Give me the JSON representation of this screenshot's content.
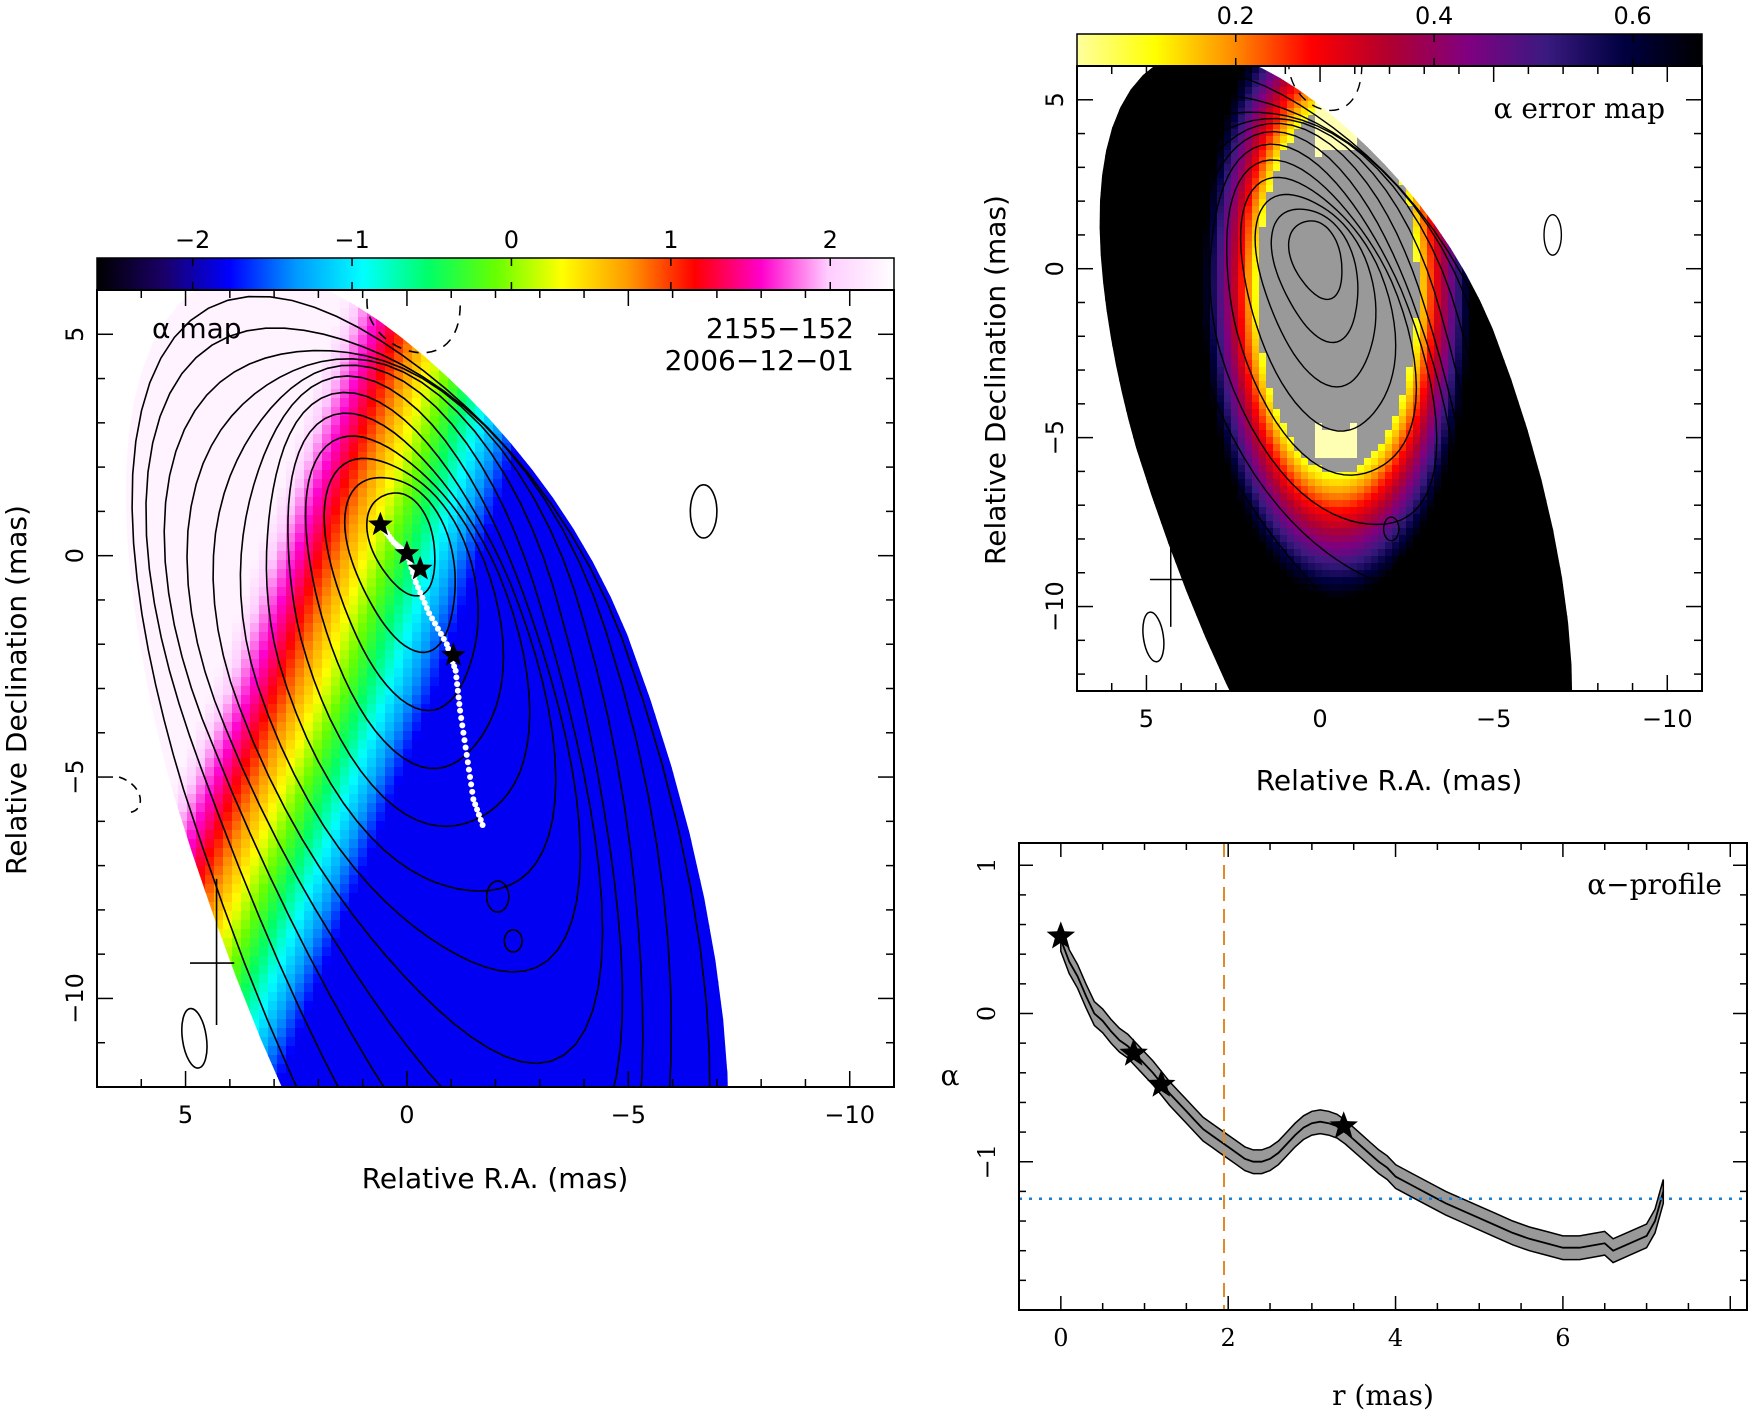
{
  "colors": {
    "alpha_map_scale": [
      "#000000",
      "#1a0066",
      "#0000ff",
      "#0099ff",
      "#00ffff",
      "#00ff66",
      "#66ff00",
      "#ffff00",
      "#ff9900",
      "#ff0000",
      "#ff00cc",
      "#ffccff",
      "#ffffff"
    ],
    "error_map_scale": [
      "#ffffa0",
      "#ffff00",
      "#ff8c00",
      "#ff0000",
      "#b00030",
      "#800080",
      "#3a1a80",
      "#000040",
      "#000000"
    ],
    "contour": "#000000",
    "ridge": "#ffffff",
    "profile_band": "#999999",
    "dashed_orange": "#e08a2e",
    "dotted_blue": "#1a7fd6"
  },
  "chart_data": [
    {
      "type": "heatmap",
      "title": "α map",
      "source": "2155−152",
      "epoch": "2006−12−01",
      "xlabel": "Relative R.A. (mas)",
      "ylabel": "Relative Declination (mas)",
      "xlim": [
        7,
        -11
      ],
      "ylim": [
        -12,
        6
      ],
      "xticks": [
        5,
        0,
        -5,
        -10
      ],
      "xtick_labels": [
        "5",
        "0",
        "−5",
        "−10"
      ],
      "yticks": [
        5,
        0,
        -5,
        -10
      ],
      "ytick_labels": [
        "5",
        "0",
        "−5",
        "−10"
      ],
      "colorbar": {
        "range": [
          -2.6,
          2.4
        ],
        "ticks": [
          -2,
          -1,
          0,
          1,
          2
        ],
        "tick_labels": [
          "−2",
          "−1",
          "0",
          "1",
          "2"
        ]
      },
      "star_positions": [
        {
          "ra": 0.6,
          "dec": 0.7
        },
        {
          "ra": 0.0,
          "dec": 0.05
        },
        {
          "ra": -0.3,
          "dec": -0.3
        },
        {
          "ra": -1.05,
          "dec": -2.25
        }
      ],
      "ridge_line": [
        {
          "ra": 0.6,
          "dec": 0.7
        },
        {
          "ra": 0.3,
          "dec": 0.3
        },
        {
          "ra": 0.0,
          "dec": 0.05
        },
        {
          "ra": -0.2,
          "dec": -0.6
        },
        {
          "ra": -0.5,
          "dec": -1.3
        },
        {
          "ra": -0.9,
          "dec": -2.0
        },
        {
          "ra": -1.1,
          "dec": -2.6
        },
        {
          "ra": -1.2,
          "dec": -3.5
        },
        {
          "ra": -1.35,
          "dec": -4.5
        },
        {
          "ra": -1.5,
          "dec": -5.5
        },
        {
          "ra": -1.75,
          "dec": -6.2
        }
      ]
    },
    {
      "type": "heatmap",
      "title": "α error map",
      "xlabel": "Relative R.A. (mas)",
      "ylabel": "Relative Declination (mas)",
      "xlim": [
        7,
        -11
      ],
      "ylim": [
        -12.5,
        6
      ],
      "xticks": [
        5,
        0,
        -5,
        -10
      ],
      "xtick_labels": [
        "5",
        "0",
        "−5",
        "−10"
      ],
      "yticks": [
        5,
        0,
        -5,
        -10
      ],
      "ytick_labels": [
        "5",
        "0",
        "−5",
        "−10"
      ],
      "colorbar": {
        "range": [
          0.04,
          0.67
        ],
        "ticks": [
          0.2,
          0.4,
          0.6
        ],
        "tick_labels": [
          "0.2",
          "0.4",
          "0.6"
        ]
      }
    },
    {
      "type": "line",
      "title": "α−profile",
      "xlabel": "r (mas)",
      "ylabel": "α",
      "xlim": [
        -0.5,
        8.2
      ],
      "ylim": [
        -2.0,
        1.15
      ],
      "xticks": [
        0,
        2,
        4,
        6
      ],
      "xtick_labels": [
        "0",
        "2",
        "4",
        "6"
      ],
      "yticks": [
        1,
        0,
        -1
      ],
      "ytick_labels": [
        "1",
        "0",
        "−1"
      ],
      "vline_x": 1.95,
      "hline_y": -1.25,
      "band_halfwidth": 0.08,
      "x": [
        0,
        0.1,
        0.2,
        0.3,
        0.4,
        0.5,
        0.6,
        0.7,
        0.8,
        0.9,
        1.0,
        1.1,
        1.2,
        1.3,
        1.4,
        1.5,
        1.6,
        1.7,
        1.8,
        1.9,
        2.0,
        2.1,
        2.2,
        2.3,
        2.4,
        2.5,
        2.6,
        2.7,
        2.8,
        2.9,
        3.0,
        3.1,
        3.2,
        3.3,
        3.4,
        3.5,
        3.6,
        3.7,
        3.8,
        3.9,
        4.0,
        4.2,
        4.4,
        4.6,
        4.8,
        5.0,
        5.2,
        5.4,
        5.6,
        5.8,
        6.0,
        6.2,
        6.4,
        6.5,
        6.6,
        6.8,
        7.0,
        7.1,
        7.2
      ],
      "y": [
        0.5,
        0.35,
        0.25,
        0.12,
        0.0,
        -0.05,
        -0.12,
        -0.18,
        -0.22,
        -0.28,
        -0.34,
        -0.4,
        -0.47,
        -0.54,
        -0.6,
        -0.66,
        -0.72,
        -0.78,
        -0.82,
        -0.86,
        -0.9,
        -0.94,
        -0.98,
        -1.0,
        -1.0,
        -0.98,
        -0.94,
        -0.88,
        -0.82,
        -0.77,
        -0.74,
        -0.73,
        -0.74,
        -0.76,
        -0.8,
        -0.85,
        -0.9,
        -0.95,
        -1.0,
        -1.04,
        -1.1,
        -1.16,
        -1.22,
        -1.28,
        -1.33,
        -1.38,
        -1.43,
        -1.48,
        -1.52,
        -1.55,
        -1.58,
        -1.58,
        -1.56,
        -1.55,
        -1.6,
        -1.55,
        -1.5,
        -1.4,
        -1.2
      ],
      "stars": [
        {
          "x": 0.0,
          "y": 0.52
        },
        {
          "x": 0.87,
          "y": -0.27
        },
        {
          "x": 1.2,
          "y": -0.48
        },
        {
          "x": 3.38,
          "y": -0.76
        }
      ]
    }
  ]
}
